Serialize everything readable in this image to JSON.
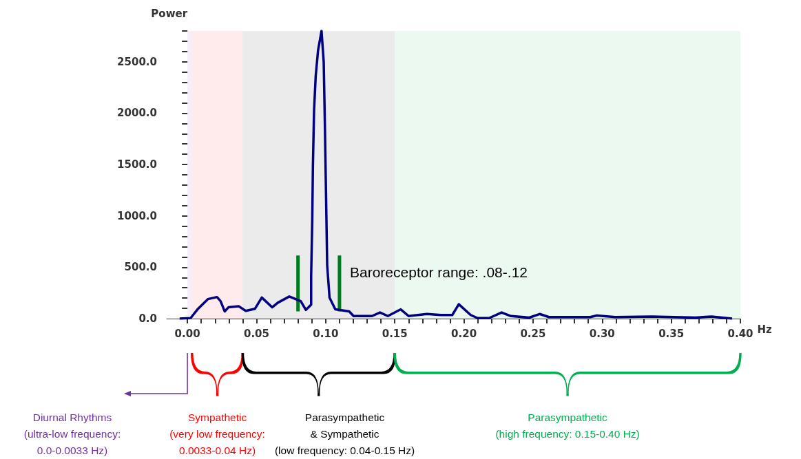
{
  "chart_data": {
    "type": "line",
    "xlabel": "Hz",
    "ylabel": "Power",
    "marker": "none",
    "grid": false,
    "xlim": [
      -0.015,
      0.4
    ],
    "ylim": [
      0,
      2800
    ],
    "xticks": [
      {
        "value": 0,
        "label": "0.00"
      },
      {
        "value": 0.01,
        "label": null
      },
      {
        "value": 0.02,
        "label": null
      },
      {
        "value": 0.03,
        "label": null
      },
      {
        "value": 0.04,
        "label": null
      },
      {
        "value": 0.05,
        "label": "0.05"
      },
      {
        "value": 0.06,
        "label": null
      },
      {
        "value": 0.07,
        "label": null
      },
      {
        "value": 0.08,
        "label": null
      },
      {
        "value": 0.09,
        "label": null
      },
      {
        "value": 0.1,
        "label": "0.10"
      },
      {
        "value": 0.11,
        "label": null
      },
      {
        "value": 0.12,
        "label": null
      },
      {
        "value": 0.13,
        "label": null
      },
      {
        "value": 0.14,
        "label": null
      },
      {
        "value": 0.15,
        "label": "0.15"
      },
      {
        "value": 0.16,
        "label": null
      },
      {
        "value": 0.17,
        "label": null
      },
      {
        "value": 0.18,
        "label": null
      },
      {
        "value": 0.19,
        "label": null
      },
      {
        "value": 0.2,
        "label": "0.20"
      },
      {
        "value": 0.21,
        "label": null
      },
      {
        "value": 0.22,
        "label": null
      },
      {
        "value": 0.23,
        "label": null
      },
      {
        "value": 0.24,
        "label": null
      },
      {
        "value": 0.25,
        "label": "0.25"
      },
      {
        "value": 0.26,
        "label": null
      },
      {
        "value": 0.27,
        "label": null
      },
      {
        "value": 0.28,
        "label": null
      },
      {
        "value": 0.29,
        "label": null
      },
      {
        "value": 0.3,
        "label": "0.30"
      },
      {
        "value": 0.31,
        "label": null
      },
      {
        "value": 0.32,
        "label": null
      },
      {
        "value": 0.33,
        "label": null
      },
      {
        "value": 0.34,
        "label": null
      },
      {
        "value": 0.35,
        "label": "0.35"
      },
      {
        "value": 0.36,
        "label": null
      },
      {
        "value": 0.37,
        "label": null
      },
      {
        "value": 0.38,
        "label": null
      },
      {
        "value": 0.39,
        "label": null
      },
      {
        "value": 0.4,
        "label": "0.40"
      }
    ],
    "yticks": [
      {
        "value": 0,
        "label": "0.0"
      },
      {
        "value": 100,
        "label": null
      },
      {
        "value": 200,
        "label": null
      },
      {
        "value": 300,
        "label": null
      },
      {
        "value": 400,
        "label": null
      },
      {
        "value": 500,
        "label": "500.0"
      },
      {
        "value": 600,
        "label": null
      },
      {
        "value": 700,
        "label": null
      },
      {
        "value": 800,
        "label": null
      },
      {
        "value": 900,
        "label": null
      },
      {
        "value": 1000,
        "label": "1000.0"
      },
      {
        "value": 1100,
        "label": null
      },
      {
        "value": 1200,
        "label": null
      },
      {
        "value": 1300,
        "label": null
      },
      {
        "value": 1400,
        "label": null
      },
      {
        "value": 1500,
        "label": "1500.0"
      },
      {
        "value": 1600,
        "label": null
      },
      {
        "value": 1700,
        "label": null
      },
      {
        "value": 1800,
        "label": null
      },
      {
        "value": 1900,
        "label": null
      },
      {
        "value": 2000,
        "label": "2000.0"
      },
      {
        "value": 2100,
        "label": null
      },
      {
        "value": 2200,
        "label": null
      },
      {
        "value": 2300,
        "label": null
      },
      {
        "value": 2400,
        "label": null
      },
      {
        "value": 2500,
        "label": "2500.0"
      },
      {
        "value": 2600,
        "label": null
      },
      {
        "value": 2700,
        "label": null
      },
      {
        "value": 2800,
        "label": null
      }
    ],
    "series": [
      {
        "color": "#000080",
        "x": [
          -0.0056,
          0.0023,
          0.0073,
          0.0148,
          0.0214,
          0.024,
          0.027,
          0.0297,
          0.0372,
          0.0422,
          0.0488,
          0.0538,
          0.0613,
          0.0654,
          0.0737,
          0.082,
          0.0857,
          0.0895,
          0.0895,
          0.0903,
          0.0908,
          0.0916,
          0.0928,
          0.0945,
          0.097,
          0.0986,
          0.0995,
          0.1003,
          0.1011,
          0.1028,
          0.107,
          0.117,
          0.1202,
          0.1335,
          0.1393,
          0.145,
          0.1543,
          0.16,
          0.1733,
          0.1833,
          0.1916,
          0.1963,
          0.2049,
          0.2099,
          0.2182,
          0.2273,
          0.234,
          0.2473,
          0.2548,
          0.2615,
          0.2913,
          0.2962,
          0.3095,
          0.336,
          0.3676,
          0.3792,
          0.394
        ],
        "values": [
          0,
          5,
          90,
          190,
          210,
          170,
          70,
          110,
          120,
          75,
          95,
          205,
          110,
          155,
          215,
          170,
          85,
          135,
          410,
          950,
          1500,
          2020,
          2360,
          2610,
          2800,
          2500,
          1840,
          1180,
          520,
          205,
          90,
          70,
          25,
          25,
          60,
          25,
          90,
          25,
          45,
          35,
          35,
          140,
          35,
          5,
          5,
          60,
          25,
          10,
          45,
          15,
          15,
          30,
          15,
          20,
          10,
          20,
          0
        ]
      },
      {
        "color": "#007a1e",
        "x": [
          0.08,
          0.08
        ],
        "values": [
          70,
          615
        ]
      },
      {
        "color": "#007a1e",
        "x": [
          0.11,
          0.11
        ],
        "values": [
          70,
          615
        ]
      }
    ],
    "annotations": [
      "Baroreceptor range: .08-.12"
    ],
    "bands": [
      {
        "axis": "x",
        "from": 0,
        "to": 0.0033,
        "label": "Diurnal Rhythms\n(ultra-low frequency:\n0.0-0.0033 Hz)",
        "color": "#7030a0"
      },
      {
        "axis": "x",
        "from": 0.0033,
        "to": 0.04,
        "label": "Sympathetic\n(very low frequency:\n0.0033-0.04 Hz)",
        "color": "#ff0000"
      },
      {
        "axis": "x",
        "from": 0.04,
        "to": 0.15,
        "label": "Parasympathetic\n& Sympathetic\n(low frequency: 0.04-0.15 Hz)",
        "color": "#000000"
      },
      {
        "axis": "x",
        "from": 0.15,
        "to": 0.4,
        "label": "Parasympathetic\n(high frequency: 0.15-0.40 Hz)",
        "color": "#00b050"
      }
    ]
  }
}
